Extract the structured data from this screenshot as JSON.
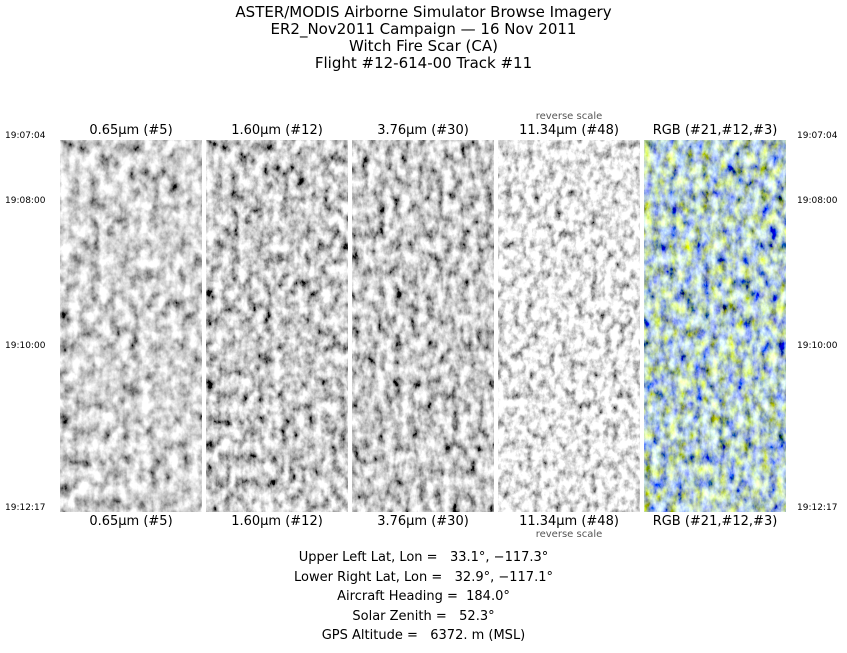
{
  "title_lines": [
    "ASTER/MODIS Airborne Simulator Browse Imagery",
    "ER2_Nov2011 Campaign — 16 Nov 2011",
    "Witch Fire Scar (CA)",
    "Flight #12-614-00 Track #11"
  ],
  "times": {
    "start": "19:07:04",
    "t2": "19:08:00",
    "t3": "19:10:00",
    "end": "19:12:17"
  },
  "panels": [
    {
      "label": "0.65μm (#5)",
      "type": "grayscale"
    },
    {
      "label": "1.60μm (#12)",
      "type": "grayscale"
    },
    {
      "label": "3.76μm (#30)",
      "type": "grayscale"
    },
    {
      "label": "11.34μm (#48)",
      "type": "grayscale",
      "note": "reverse scale"
    },
    {
      "label": "RGB (#21,#12,#3)",
      "type": "color"
    }
  ],
  "info": {
    "upper_left": "Upper Left Lat, Lon =   33.1°, −117.3°",
    "lower_right": "Lower Right Lat, Lon =   32.9°, −117.1°",
    "heading": "Aircraft Heading =  184.0°",
    "solar_zenith": "Solar Zenith =   52.3°",
    "gps_altitude": "GPS Altitude =   6372. m (MSL)"
  }
}
